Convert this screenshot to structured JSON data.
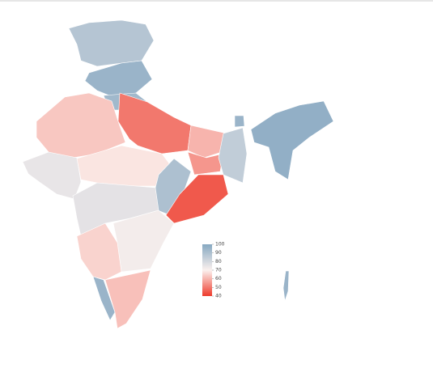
{
  "chart_data": {
    "type": "choropleth",
    "values": [
      88,
      95,
      93,
      50,
      63,
      75,
      68,
      60,
      55,
      85,
      90,
      45,
      76,
      72,
      65,
      95,
      62,
      97,
      95,
      95
    ],
    "colors": [
      "#ee3b2c",
      "#fbf1ee",
      "#86a8c1"
    ],
    "clim": [
      40,
      100
    ],
    "cticks": [
      100,
      90,
      80,
      70,
      60,
      50,
      40
    ]
  }
}
